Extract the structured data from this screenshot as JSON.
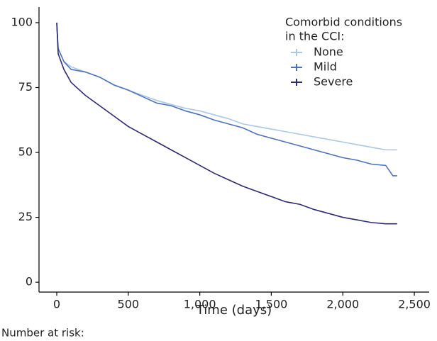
{
  "chart_data": {
    "type": "line",
    "x_label": "Time (days)",
    "annotation": "Number at risk:",
    "legend_title": [
      "Comorbid conditions",
      "in the CCI:"
    ],
    "legend_position": "top-right",
    "x": [
      0,
      10,
      50,
      100,
      200,
      300,
      400,
      500,
      600,
      700,
      800,
      900,
      1000,
      1100,
      1200,
      1300,
      1400,
      1500,
      1600,
      1700,
      1800,
      1900,
      2000,
      2100,
      2200,
      2300,
      2350,
      2380
    ],
    "series": [
      {
        "name": "None",
        "color": "#a9c9ea",
        "values": [
          100,
          90,
          85,
          83,
          81,
          79,
          76,
          74,
          72,
          70,
          68.5,
          67,
          66,
          64.5,
          63,
          61,
          60,
          59,
          58,
          57,
          56,
          55,
          54,
          53,
          52,
          51,
          51,
          51
        ]
      },
      {
        "name": "Mild",
        "color": "#4a71c2",
        "values": [
          100,
          90,
          85,
          82,
          81,
          79,
          76,
          74,
          71.5,
          69,
          68,
          66,
          64.5,
          62.5,
          61,
          59.5,
          57,
          55.5,
          54,
          52.5,
          51,
          49.5,
          48,
          47,
          45.5,
          45,
          41,
          41
        ]
      },
      {
        "name": "Severe",
        "color": "#2b2b7a",
        "values": [
          100,
          88,
          82,
          77,
          72,
          68,
          64,
          60,
          57,
          54,
          51,
          48,
          45,
          42,
          39.5,
          37,
          35,
          33,
          31,
          30,
          28,
          26.5,
          25,
          24,
          23,
          22.5,
          22.5,
          22.5
        ]
      }
    ],
    "xlim": [
      -124,
      2604
    ],
    "ylim": [
      -3.8,
      106
    ],
    "xticks": [
      0,
      500,
      {
        "value": 1000,
        "label": "1,000"
      },
      {
        "value": 1500,
        "label": "1,500"
      },
      {
        "value": 2000,
        "label": "2,000"
      },
      {
        "value": 2500,
        "label": "2,500"
      }
    ],
    "yticks": [
      0,
      25,
      50,
      75,
      100
    ]
  }
}
